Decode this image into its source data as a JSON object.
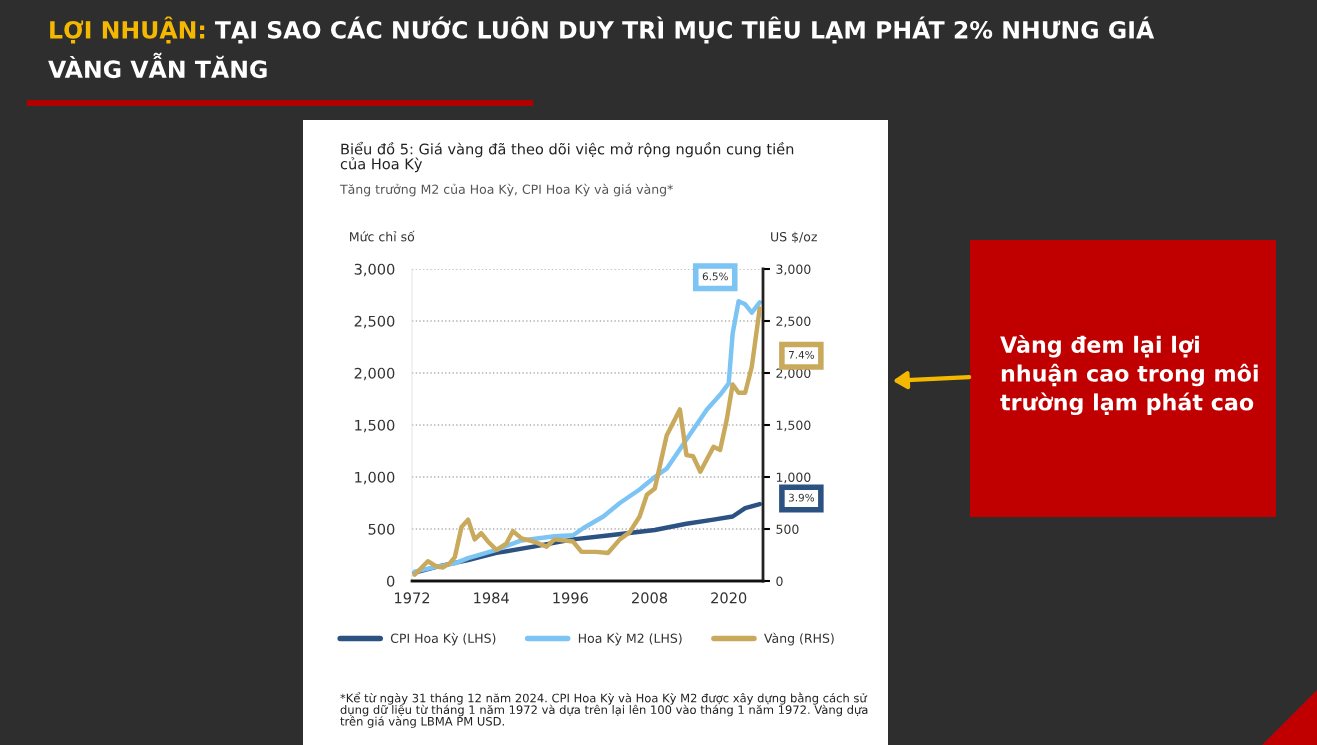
{
  "chart_data": {
    "type": "line",
    "title": "LỢI NHUẬN: TẠI SAO CÁC NƯỚC LUÔN DUY TRÌ MỤC TIÊU LẠM PHÁT 2% NHƯNG GIÁ VÀNG VẪN TĂNG",
    "subtitle": "Biểu đồ 5: Giá vàng đã theo dõi việc mở rộng nguồn cung tiền của Hoa Kỳ",
    "ylabel": "Mức chỉ số",
    "y2label": "US $/oz",
    "annotations": [
      "Tăng trưởng M2 của Hoa Kỳ, CPI Hoa Kỳ và giá vàng*",
      "*Kể từ ngày 31 tháng 12 năm 2024. CPI Hoa Kỳ và Hoa Kỳ M2 được xây dựng bằng cách sử dụng dữ liệu từ tháng 1 năm 1972 và dựa trên lại lên 100 vào tháng 1 năm 1972. Vàng dựa trên giá vàng LBMA PM USD.",
      "Vàng đem lại lợi nhuận cao trong môi trường lạm phát cao",
      "3.9%",
      "6.5%",
      "7.4%"
    ],
    "xlim": [
      1972,
      2025.2
    ],
    "xticks": [
      1972,
      1984,
      1996,
      2008,
      2020
    ],
    "ylim": [
      0,
      3000
    ],
    "yticks": [
      {
        "value": 0,
        "label": "0"
      },
      {
        "value": 500,
        "label": "500"
      },
      {
        "value": 1000,
        "label": "1,000"
      },
      {
        "value": 1500,
        "label": "1,500"
      },
      {
        "value": 2000,
        "label": "2,000"
      },
      {
        "value": 2500,
        "label": "2,500"
      },
      {
        "value": 3000,
        "label": "3,000"
      }
    ],
    "y2lim": [
      0,
      3000
    ],
    "y2ticks": [
      {
        "value": 0,
        "label": "0"
      },
      {
        "value": 500,
        "label": "500"
      },
      {
        "value": 1000,
        "label": "1,000"
      },
      {
        "value": 1500,
        "label": "1,500"
      },
      {
        "value": 2000,
        "label": "2,000"
      },
      {
        "value": 2500,
        "label": "2,500"
      },
      {
        "value": 3000,
        "label": "3,000"
      }
    ],
    "grid": "y",
    "legend": "bottom",
    "marker": "none",
    "line_style": "solid",
    "series": [
      {
        "name": "CPI Hoa Kỳ (LHS)",
        "color": "#2c5282",
        "x": [
          1972.4,
          1976,
          1980.5,
          1984.8,
          1990.4,
          1996.4,
          2002,
          2008.8,
          2013.6,
          2017.7,
          2020.6,
          2022.5,
          2024.7
        ],
        "values": [
          80,
          140,
          200,
          270,
          330,
          400,
          440,
          490,
          550,
          590,
          620,
          700,
          740
        ]
      },
      {
        "name": "Hoa Kỳ M2 (LHS)",
        "color": "#7cc4f4",
        "x": [
          1972.4,
          1976,
          1978.5,
          1980.5,
          1984.8,
          1988.6,
          1993.6,
          1996.4,
          1998,
          2001,
          2003.5,
          2006.5,
          2008.8,
          2010.6,
          2013.6,
          2016.7,
          2018.7,
          2020,
          2020.6,
          2021.5,
          2022.5,
          2023.5,
          2024.7
        ],
        "values": [
          90,
          140,
          170,
          220,
          300,
          390,
          430,
          440,
          510,
          620,
          750,
          880,
          1000,
          1080,
          1360,
          1650,
          1790,
          1900,
          2380,
          2690,
          2660,
          2580,
          2680
        ]
      },
      {
        "name": "Vàng (RHS)",
        "color": "#c9a95c",
        "axis": "y2",
        "x": [
          1972.4,
          1974.4,
          1975.7,
          1976.7,
          1977.7,
          1978.5,
          1979.5,
          1980.5,
          1981.5,
          1982.5,
          1983.5,
          1984.8,
          1986.3,
          1987.3,
          1988.6,
          1990.4,
          1992.4,
          1993.6,
          1996.4,
          1997.7,
          1999.9,
          2001.7,
          2003.5,
          2005.0,
          2006.5,
          2007.6,
          2008.8,
          2010.6,
          2012.6,
          2013.6,
          2014.6,
          2015.7,
          2016.7,
          2017.7,
          2018.7,
          2019.7,
          2020.6,
          2021.5,
          2022.5,
          2023.5,
          2024.7
        ],
        "values": [
          60,
          190,
          140,
          130,
          170,
          230,
          520,
          590,
          400,
          460,
          380,
          300,
          360,
          480,
          410,
          380,
          330,
          400,
          380,
          280,
          280,
          270,
          400,
          470,
          620,
          830,
          890,
          1400,
          1650,
          1210,
          1200,
          1050,
          1170,
          1290,
          1260,
          1550,
          1890,
          1810,
          1810,
          2060,
          2620
        ]
      }
    ]
  }
}
